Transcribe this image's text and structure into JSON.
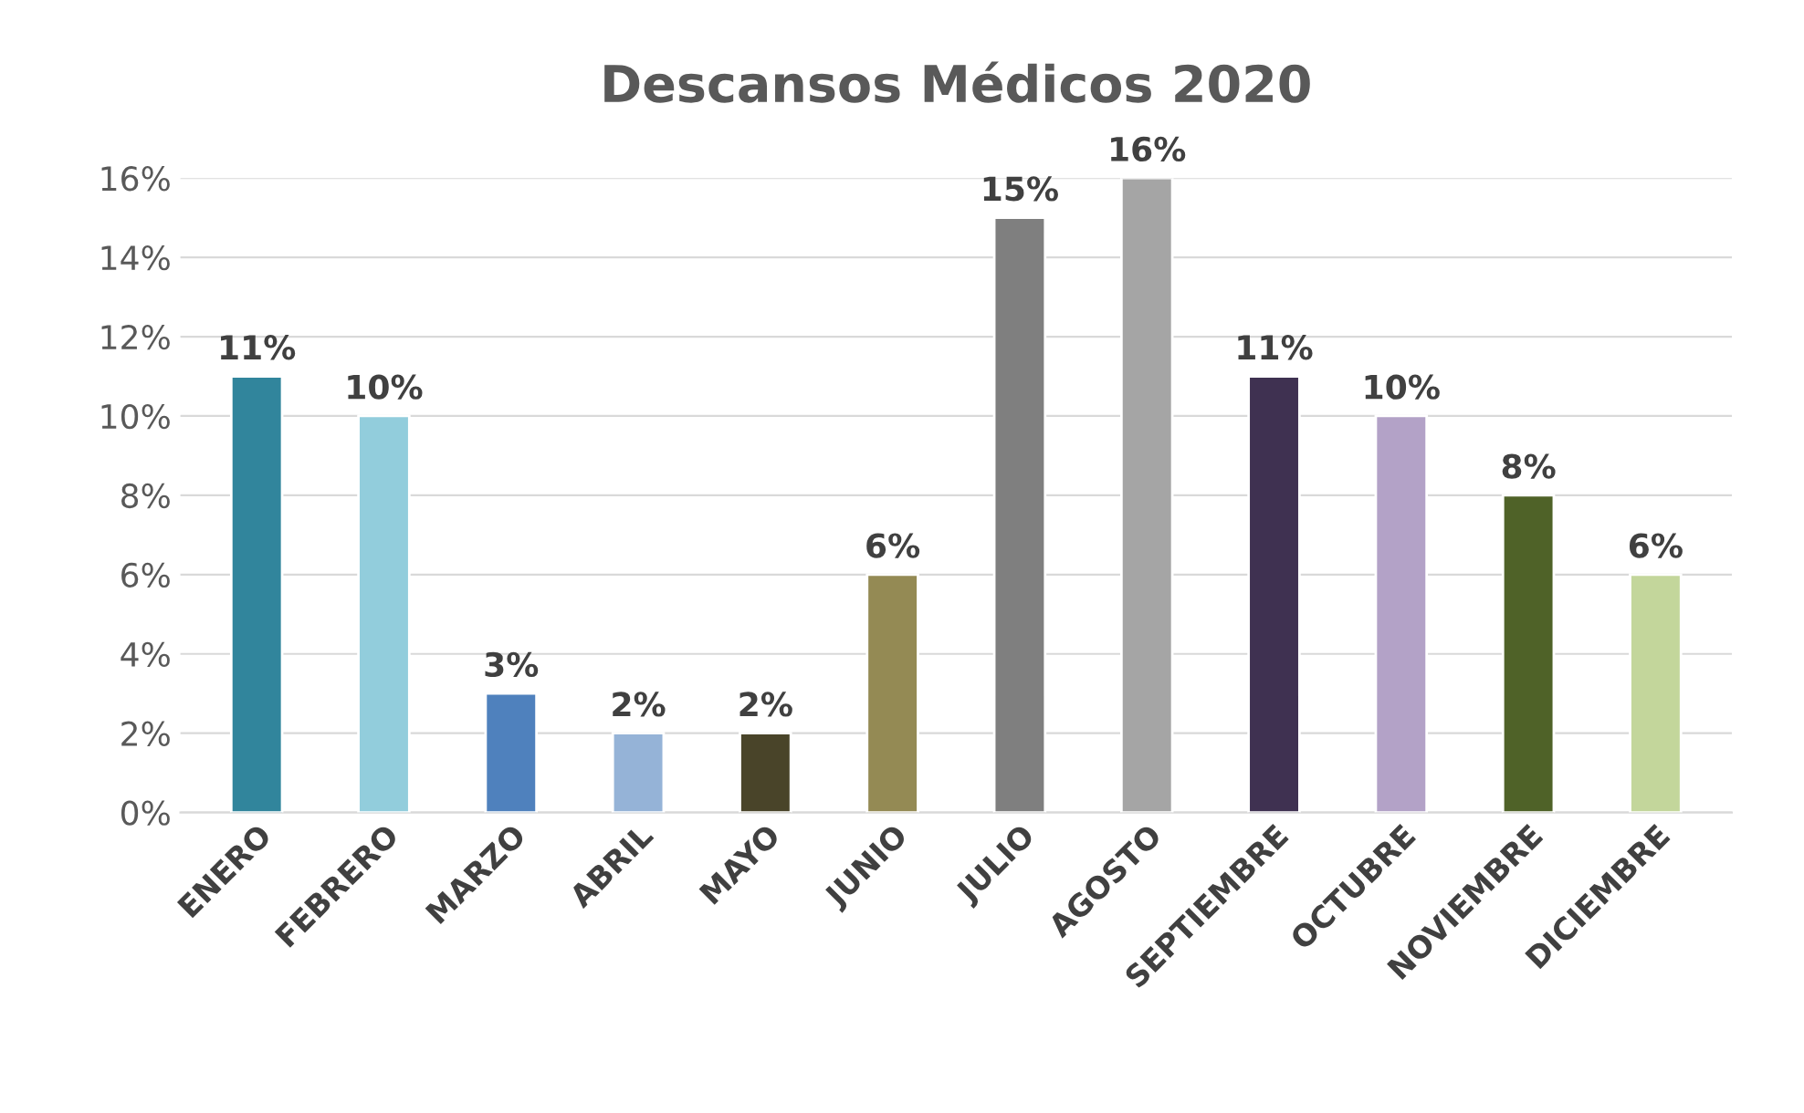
{
  "chart_data": {
    "type": "bar",
    "title": "Descansos Médicos 2020",
    "categories": [
      "ENERO",
      "FEBRERO",
      "MARZO",
      "ABRIL",
      "MAYO",
      "JUNIO",
      "JULIO",
      "AGOSTO",
      "SEPTIEMBRE",
      "OCTUBRE",
      "NOVIEMBRE",
      "DICIEMBRE"
    ],
    "values": [
      11,
      10,
      3,
      2,
      2,
      6,
      15,
      16,
      11,
      10,
      8,
      6
    ],
    "colors": [
      "#31859c",
      "#92cddc",
      "#4f81bd",
      "#95b3d7",
      "#494429",
      "#948a54",
      "#7f7f7f",
      "#a5a5a5",
      "#3f3151",
      "#b3a2c7",
      "#4f6228",
      "#c3d69b"
    ],
    "value_labels": [
      "11%",
      "10%",
      "3%",
      "2%",
      "2%",
      "6%",
      "15%",
      "16%",
      "11%",
      "10%",
      "8%",
      "6%"
    ],
    "ylim": [
      0,
      16
    ],
    "yticks": [
      {
        "value": 0,
        "label": "0%"
      },
      {
        "value": 2,
        "label": "2%"
      },
      {
        "value": 4,
        "label": "4%"
      },
      {
        "value": 6,
        "label": "6%"
      },
      {
        "value": 8,
        "label": "8%"
      },
      {
        "value": 10,
        "label": "10%"
      },
      {
        "value": 12,
        "label": "12%"
      },
      {
        "value": 14,
        "label": "14%"
      },
      {
        "value": 16,
        "label": "16%"
      }
    ],
    "grid": "y"
  }
}
